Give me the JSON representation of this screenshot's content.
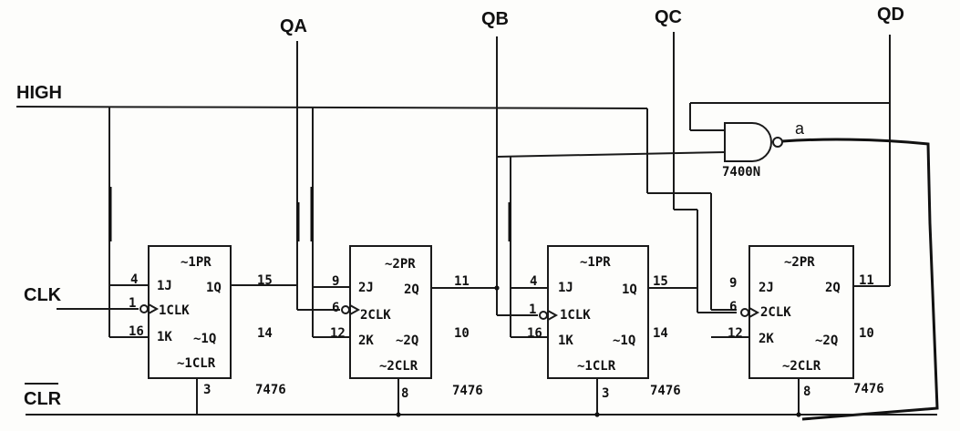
{
  "signals": {
    "qa": "QA",
    "qb": "QB",
    "qc": "QC",
    "qd": "QD",
    "high": "HIGH",
    "clk": "CLK",
    "clr": "CLR",
    "node_a": "a"
  },
  "gate": {
    "label": "7400N"
  },
  "flipflops": [
    {
      "part": "7476",
      "pr": "~1PR",
      "clr": "~1CLR",
      "j": "1J",
      "clk": "1CLK",
      "k": "1K",
      "q": "1Q",
      "qn": "~1Q",
      "pin_j": "4",
      "pin_clk": "1",
      "pin_k": "16",
      "pin_q": "15",
      "pin_qn": "14",
      "pin_clr": "3"
    },
    {
      "part": "7476",
      "pr": "~2PR",
      "clr": "~2CLR",
      "j": "2J",
      "clk": "2CLK",
      "k": "2K",
      "q": "2Q",
      "qn": "~2Q",
      "pin_j": "9",
      "pin_clk": "6",
      "pin_k": "12",
      "pin_q": "11",
      "pin_qn": "10",
      "pin_clr": "8"
    },
    {
      "part": "7476",
      "pr": "~1PR",
      "clr": "~1CLR",
      "j": "1J",
      "clk": "1CLK",
      "k": "1K",
      "q": "1Q",
      "qn": "~1Q",
      "pin_j": "4",
      "pin_clk": "1",
      "pin_k": "16",
      "pin_q": "15",
      "pin_qn": "14",
      "pin_clr": "3"
    },
    {
      "part": "7476",
      "pr": "~2PR",
      "clr": "~2CLR",
      "j": "2J",
      "clk": "2CLK",
      "k": "2K",
      "q": "2Q",
      "qn": "~2Q",
      "pin_j": "9",
      "pin_clk": "6",
      "pin_k": "12",
      "pin_q": "11",
      "pin_qn": "10",
      "pin_clr": "8"
    }
  ]
}
